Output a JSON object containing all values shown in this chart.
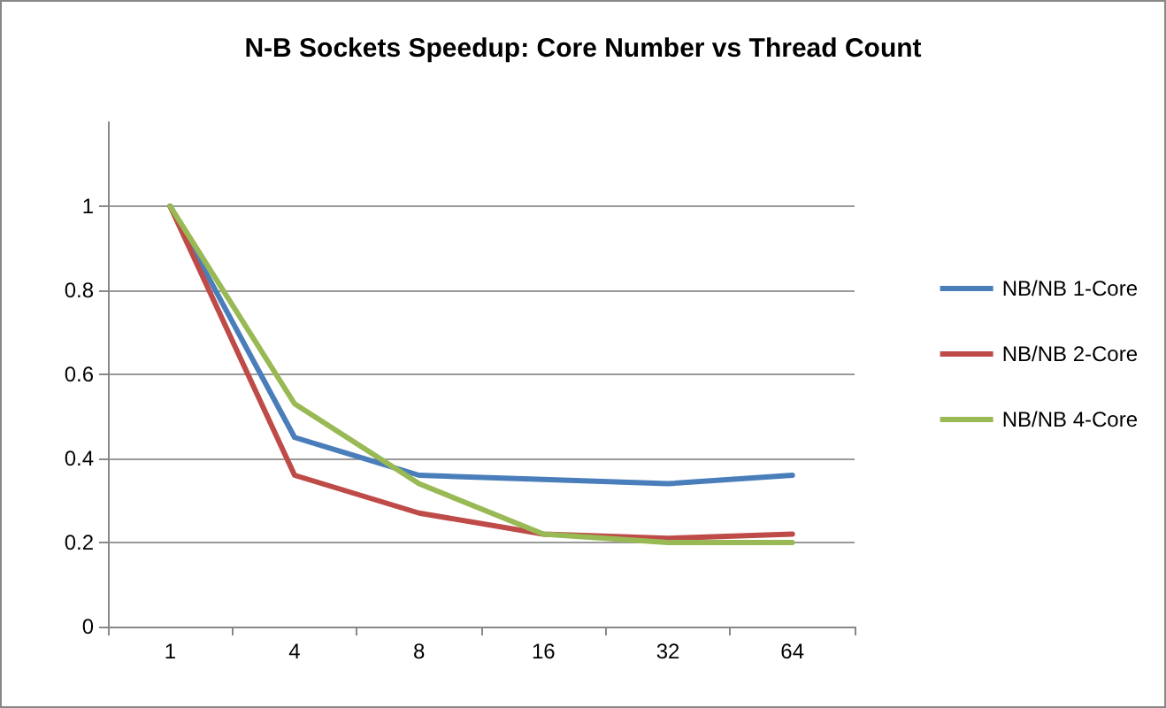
{
  "chart_data": {
    "type": "line",
    "title": "N-B Sockets Speedup: Core Number vs Thread Count",
    "categories": [
      "1",
      "4",
      "8",
      "16",
      "32",
      "64"
    ],
    "series": [
      {
        "name": "NB/NB 1-Core",
        "color": "#4a7ebb",
        "values": [
          1,
          0.45,
          0.36,
          0.35,
          0.34,
          0.36
        ]
      },
      {
        "name": "NB/NB 2-Core",
        "color": "#be4b48",
        "values": [
          1,
          0.36,
          0.27,
          0.22,
          0.21,
          0.22
        ]
      },
      {
        "name": "NB/NB 4-Core",
        "color": "#98b954",
        "values": [
          1,
          0.53,
          0.34,
          0.22,
          0.2,
          0.2
        ]
      }
    ],
    "ylim": [
      0,
      1.2
    ],
    "yticks": [
      0,
      0.2,
      0.4,
      0.6,
      0.8,
      1
    ],
    "grid": "y",
    "legend": "right",
    "marker": "none",
    "line_style": "solid"
  }
}
